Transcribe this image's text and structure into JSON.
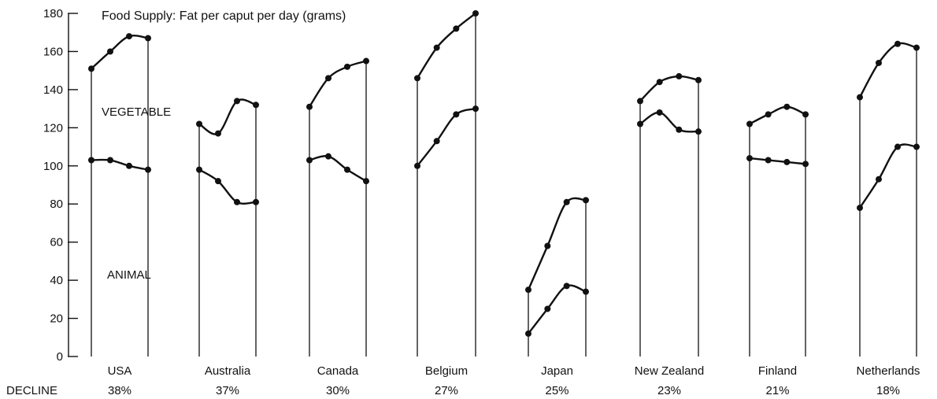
{
  "chart_data": {
    "type": "line",
    "title": "Food Supply: Fat per caput per day (grams)",
    "row_label": "DECLINE",
    "region_labels": {
      "upper": "VEGETABLE",
      "lower": "ANIMAL"
    },
    "ylim": [
      0,
      180
    ],
    "yticks": [
      0,
      20,
      40,
      60,
      80,
      100,
      120,
      140,
      160,
      180
    ],
    "grid": false,
    "countries": [
      {
        "name": "USA",
        "decline": "38%",
        "total": [
          151,
          160,
          168,
          167
        ],
        "animal": [
          103,
          103,
          100,
          98
        ]
      },
      {
        "name": "Australia",
        "decline": "37%",
        "total": [
          122,
          117,
          134,
          132
        ],
        "animal": [
          98,
          92,
          81,
          81
        ]
      },
      {
        "name": "Canada",
        "decline": "30%",
        "total": [
          131,
          146,
          152,
          155
        ],
        "animal": [
          103,
          105,
          98,
          92
        ]
      },
      {
        "name": "Belgium",
        "decline": "27%",
        "total": [
          146,
          162,
          172,
          180
        ],
        "animal": [
          100,
          113,
          127,
          130
        ]
      },
      {
        "name": "Japan",
        "decline": "25%",
        "total": [
          35,
          58,
          81,
          82
        ],
        "animal": [
          12,
          25,
          37,
          34
        ]
      },
      {
        "name": "New Zealand",
        "decline": "23%",
        "total": [
          134,
          144,
          147,
          145
        ],
        "animal": [
          122,
          128,
          119,
          118
        ]
      },
      {
        "name": "Finland",
        "decline": "21%",
        "total": [
          122,
          127,
          131,
          127
        ],
        "animal": [
          104,
          103,
          102,
          101
        ]
      },
      {
        "name": "Netherlands",
        "decline": "18%",
        "total": [
          136,
          154,
          164,
          162
        ],
        "animal": [
          78,
          93,
          110,
          110
        ]
      }
    ]
  }
}
